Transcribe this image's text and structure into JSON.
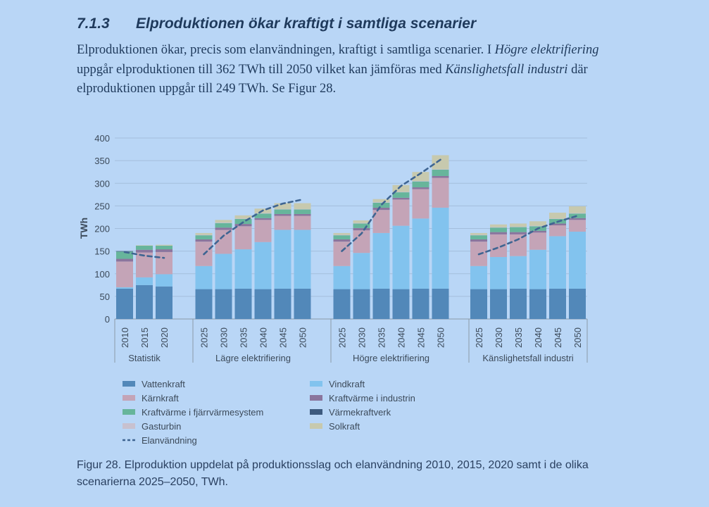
{
  "section": {
    "number": "7.1.3",
    "title": "Elproduktionen ökar kraftigt i samtliga scenarier"
  },
  "intro": {
    "s1": "Elproduktionen ökar, precis som elanvändningen, kraftigt i samtliga scenarier. I",
    "s2": "Högre elektrifiering",
    "s3": "uppgår elproduktionen till 362 TWh till 2050 vilket kan jämföras med",
    "s4": "Känslighetsfall industri",
    "s5": "där elproduktionen uppgår till 249 TWh. Se Figur 28."
  },
  "caption": "Figur 28. Elproduktion uppdelat på produktionsslag och elanvändning 2010, 2015, 2020 samt i de olika scenarierna 2025–2050, TWh.",
  "colors": {
    "Vattenkraft": "#5288b9",
    "Kärnkraft": "#c4a4b7",
    "Kraftvärme i fjärrvärmesystem": "#67b59b",
    "Gasturbin": "#c8c1cf",
    "Vindkraft": "#82c3ee",
    "Kraftvärme i industrin": "#8a759d",
    "Värmekraftverk": "#3d5a7e",
    "Solkraft": "#c7c9ae",
    "Elanvändning": "#3f6592",
    "axis": "#8c99a8",
    "grid": "#a4bedc",
    "text": "#3c4a5a"
  },
  "chart_data": {
    "type": "bar",
    "stacked": true,
    "ylabel": "TWh",
    "ylim": [
      0,
      400
    ],
    "yticks": [
      0,
      50,
      100,
      150,
      200,
      250,
      300,
      350,
      400
    ],
    "groups": [
      {
        "label": "Statistik",
        "years": [
          "2010",
          "2015",
          "2020"
        ]
      },
      {
        "label": "Lägre elektrifiering",
        "years": [
          "2025",
          "2030",
          "2035",
          "2040",
          "2045",
          "2050"
        ]
      },
      {
        "label": "Högre elektrifiering",
        "years": [
          "2025",
          "2030",
          "2035",
          "2040",
          "2045",
          "2050"
        ]
      },
      {
        "label": "Känslighetsfall industri",
        "years": [
          "2025",
          "2030",
          "2035",
          "2040",
          "2045",
          "2050"
        ]
      }
    ],
    "series": [
      {
        "name": "Vattenkraft",
        "values": [
          [
            67,
            75,
            72
          ],
          [
            66,
            66,
            67,
            66,
            67,
            67
          ],
          [
            66,
            66,
            67,
            66,
            67,
            67
          ],
          [
            66,
            66,
            67,
            66,
            67,
            67
          ]
        ]
      },
      {
        "name": "Vindkraft",
        "values": [
          [
            3,
            17,
            27
          ],
          [
            51,
            78,
            87,
            104,
            130,
            130
          ],
          [
            51,
            80,
            123,
            140,
            155,
            179
          ],
          [
            51,
            71,
            72,
            87,
            116,
            126
          ]
        ]
      },
      {
        "name": "Kärnkraft",
        "values": [
          [
            57,
            55,
            49
          ],
          [
            54,
            53,
            51,
            49,
            31,
            31
          ],
          [
            54,
            50,
            51,
            58,
            65,
            66
          ],
          [
            54,
            50,
            48,
            38,
            24,
            26
          ]
        ]
      },
      {
        "name": "Kraftvärme i industrin",
        "values": [
          [
            6,
            6,
            6
          ],
          [
            5,
            5,
            5,
            4,
            4,
            4
          ],
          [
            5,
            5,
            5,
            4,
            4,
            4
          ],
          [
            5,
            5,
            5,
            4,
            4,
            4
          ]
        ]
      },
      {
        "name": "Kraftvärme i fjärrvärmesystem",
        "values": [
          [
            16,
            9,
            8
          ],
          [
            9,
            10,
            11,
            10,
            10,
            10
          ],
          [
            9,
            10,
            11,
            12,
            13,
            14
          ],
          [
            9,
            10,
            11,
            10,
            10,
            10
          ]
        ]
      },
      {
        "name": "Värmekraftverk",
        "values": [
          [
            1,
            0,
            0
          ],
          [
            0,
            0,
            0,
            0,
            0,
            0
          ],
          [
            0,
            0,
            0,
            0,
            0,
            0
          ],
          [
            0,
            0,
            0,
            0,
            0,
            0
          ]
        ]
      },
      {
        "name": "Gasturbin",
        "values": [
          [
            0,
            0,
            0
          ],
          [
            1,
            1,
            1,
            1,
            1,
            1
          ],
          [
            1,
            1,
            1,
            1,
            1,
            1
          ],
          [
            1,
            1,
            1,
            1,
            1,
            1
          ]
        ]
      },
      {
        "name": "Solkraft",
        "values": [
          [
            0,
            1,
            2
          ],
          [
            4,
            6,
            7,
            10,
            13,
            13
          ],
          [
            4,
            6,
            7,
            15,
            20,
            31
          ],
          [
            4,
            6,
            7,
            10,
            13,
            15
          ]
        ]
      }
    ],
    "line": {
      "name": "Elanvändning",
      "values": [
        [
          148,
          140,
          135
        ],
        [
          143,
          184,
          214,
          240,
          255,
          264
        ],
        [
          150,
          189,
          252,
          294,
          322,
          352
        ],
        [
          143,
          158,
          176,
          200,
          215,
          228
        ]
      ]
    },
    "legend": {
      "position": "bottom",
      "items": [
        "Vattenkraft",
        "Vindkraft",
        "Kärnkraft",
        "Kraftvärme i industrin",
        "Kraftvärme i fjärrvärmesystem",
        "Värmekraftverk",
        "Gasturbin",
        "Solkraft",
        "Elanvändning"
      ]
    }
  }
}
